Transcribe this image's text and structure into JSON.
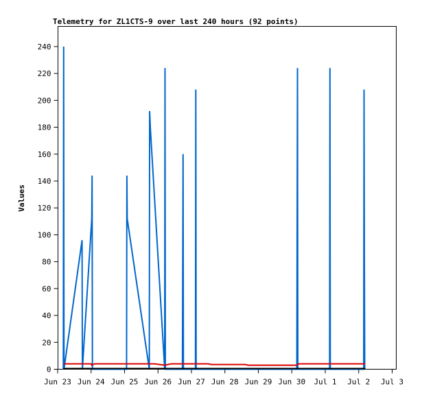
{
  "chart_data": {
    "type": "line",
    "title": "Telemetry for ZL1CTS-9 over last 240 hours (92 points)",
    "xlabel": "",
    "ylabel": "Values",
    "x_ticks": [
      "Jun 23",
      "Jun 24",
      "Jun 25",
      "Jun 26",
      "Jun 27",
      "Jun 28",
      "Jun 29",
      "Jun 30",
      "Jul 1",
      "Jul 2",
      "Jul 3"
    ],
    "xlim": [
      0,
      10
    ],
    "ylim": [
      0,
      255
    ],
    "y_ticks": [
      0,
      20,
      40,
      60,
      80,
      100,
      120,
      140,
      160,
      180,
      200,
      220,
      240
    ],
    "grid": false,
    "legend": "none",
    "series": [
      {
        "color": "#0066cc",
        "points": [
          [
            0.17,
            0
          ],
          [
            0.18,
            240
          ],
          [
            0.19,
            0
          ],
          [
            0.73,
            96
          ],
          [
            0.74,
            0
          ],
          [
            1.02,
            112
          ],
          [
            1.03,
            144
          ],
          [
            1.04,
            0
          ],
          [
            2.06,
            0
          ],
          [
            2.07,
            144
          ],
          [
            2.08,
            112
          ],
          [
            2.74,
            0
          ],
          [
            2.75,
            192
          ],
          [
            2.77,
            180
          ],
          [
            3.2,
            0
          ],
          [
            3.21,
            224
          ],
          [
            3.22,
            0
          ],
          [
            3.73,
            0
          ],
          [
            3.74,
            80
          ],
          [
            3.75,
            160
          ],
          [
            3.76,
            0
          ],
          [
            4.12,
            0
          ],
          [
            4.13,
            208
          ],
          [
            4.14,
            0
          ],
          [
            7.15,
            0
          ],
          [
            7.16,
            112
          ],
          [
            7.17,
            224
          ],
          [
            7.18,
            0
          ],
          [
            8.13,
            0
          ],
          [
            8.14,
            224
          ],
          [
            8.15,
            0
          ],
          [
            9.15,
            0
          ],
          [
            9.16,
            208
          ],
          [
            9.17,
            80
          ],
          [
            9.18,
            0
          ]
        ]
      },
      {
        "color": "#dd0000",
        "points": [
          [
            0.17,
            4
          ],
          [
            1.0,
            4
          ],
          [
            1.02,
            3
          ],
          [
            1.1,
            4
          ],
          [
            2.9,
            4
          ],
          [
            3.2,
            3
          ],
          [
            3.4,
            4
          ],
          [
            4.5,
            4
          ],
          [
            4.6,
            3.5
          ],
          [
            5.6,
            3.5
          ],
          [
            5.7,
            3
          ],
          [
            7.15,
            3
          ],
          [
            7.2,
            4
          ],
          [
            9.2,
            4
          ]
        ]
      },
      {
        "color": "#000000",
        "points": [
          [
            0.17,
            0.5
          ],
          [
            9.2,
            0.5
          ]
        ]
      }
    ]
  }
}
